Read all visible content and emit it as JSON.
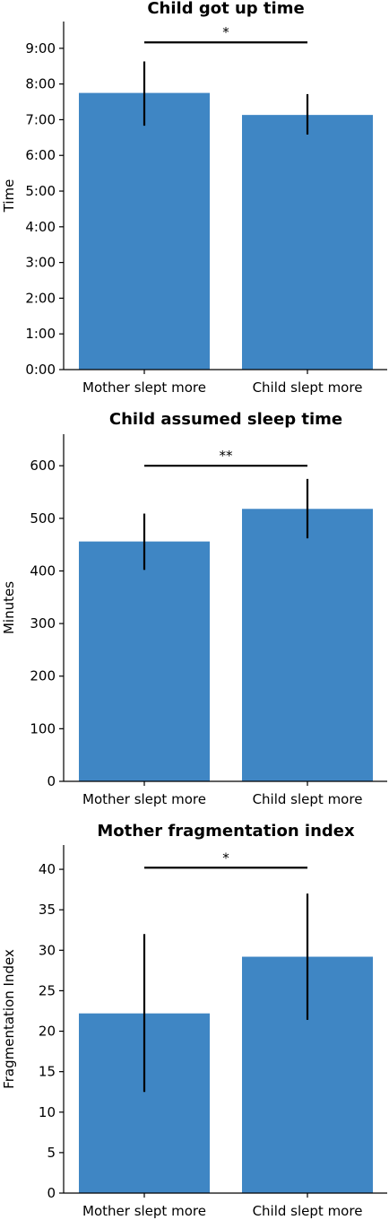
{
  "chart_data": [
    {
      "type": "bar",
      "title": "Child got up time",
      "ylabel": "Time",
      "xlabel": "",
      "categories": [
        "Mother slept more",
        "Child slept more"
      ],
      "values": [
        "7:45",
        "7:08"
      ],
      "error_low": [
        "6:50",
        "6:35"
      ],
      "error_high": [
        "8:38",
        "7:43"
      ],
      "ylim": [
        "0:00",
        "9:45"
      ],
      "yticks": [
        "0:00",
        "1:00",
        "2:00",
        "3:00",
        "4:00",
        "5:00",
        "6:00",
        "7:00",
        "8:00",
        "9:00"
      ],
      "significance": {
        "from": "Mother slept more",
        "to": "Child slept more",
        "label": "*",
        "level": "9:10"
      },
      "bar_color": "#3f86c4",
      "grid": false
    },
    {
      "type": "bar",
      "title": "Child assumed sleep time",
      "ylabel": "Minutes",
      "xlabel": "",
      "categories": [
        "Mother slept more",
        "Child slept more"
      ],
      "values": [
        456,
        518
      ],
      "error_low": [
        402,
        462
      ],
      "error_high": [
        509,
        575
      ],
      "ylim": [
        0,
        660
      ],
      "yticks": [
        0,
        100,
        200,
        300,
        400,
        500,
        600
      ],
      "significance": {
        "from": "Mother slept more",
        "to": "Child slept more",
        "label": "**",
        "level": 600
      },
      "bar_color": "#3f86c4",
      "grid": false
    },
    {
      "type": "bar",
      "title": "Mother fragmentation index",
      "ylabel": "Fragmentation Index",
      "xlabel": "",
      "categories": [
        "Mother slept more",
        "Child slept more"
      ],
      "values": [
        22.2,
        29.2
      ],
      "error_low": [
        12.5,
        21.4
      ],
      "error_high": [
        32.0,
        37.0
      ],
      "ylim": [
        0,
        43
      ],
      "yticks": [
        0,
        5,
        10,
        15,
        20,
        25,
        30,
        35,
        40
      ],
      "significance": {
        "from": "Mother slept more",
        "to": "Child slept more",
        "label": "*",
        "level": 40.2
      },
      "bar_color": "#3f86c4",
      "grid": false
    }
  ]
}
